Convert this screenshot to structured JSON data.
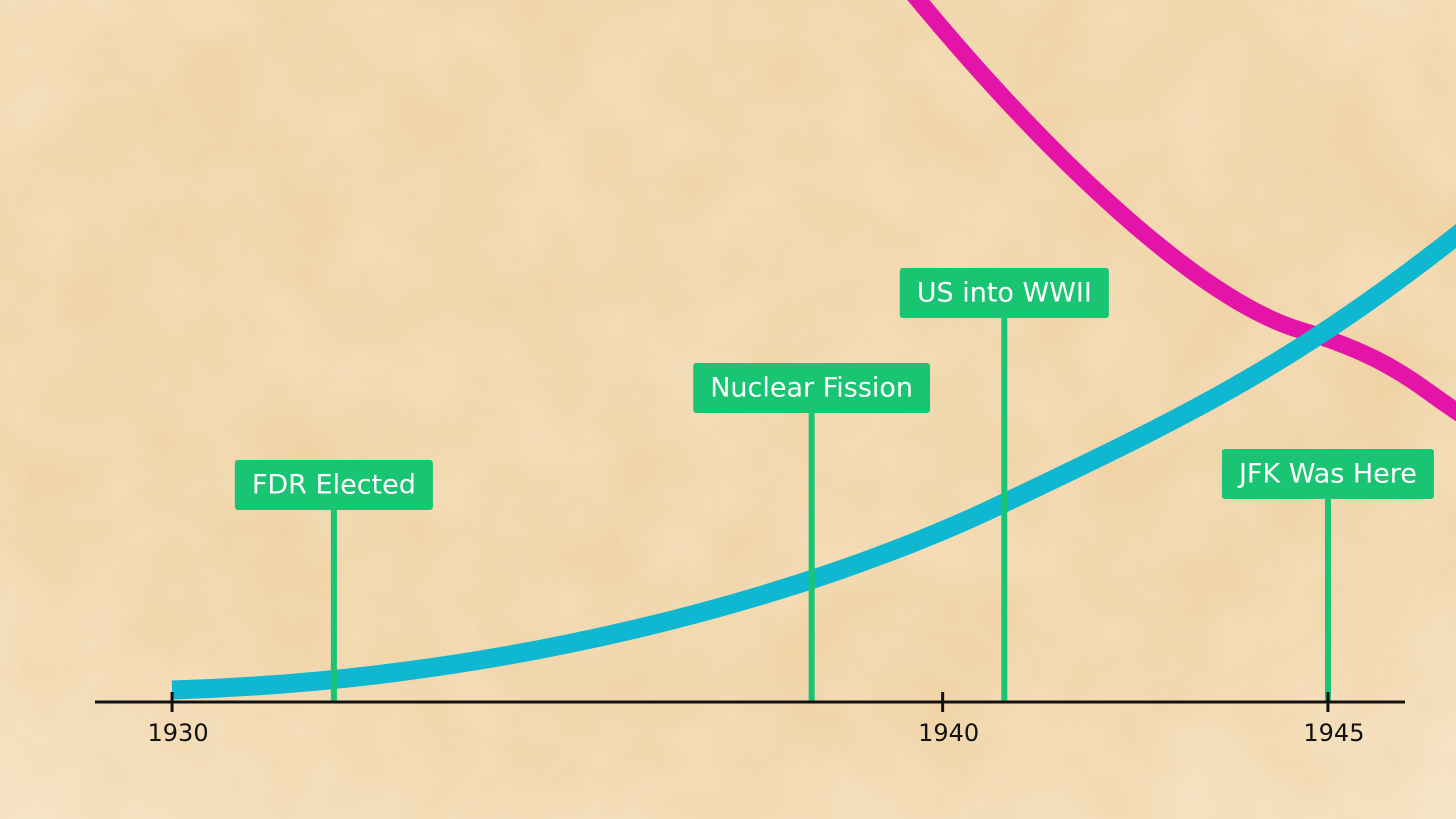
{
  "chart_data": {
    "type": "timeline",
    "events": [
      {
        "label": "FDR Elected",
        "x": 1932.1
      },
      {
        "label": "Nuclear Fission",
        "x": 1938.3
      },
      {
        "label": "US into WWII",
        "x": 1940.8
      },
      {
        "label": "JFK Was Here",
        "x": 1945
      }
    ],
    "xlim": [
      1929,
      1946
    ],
    "xticks": [
      1930,
      1940,
      1945
    ],
    "event_color": "#19c472",
    "axis_color": "#111111"
  }
}
